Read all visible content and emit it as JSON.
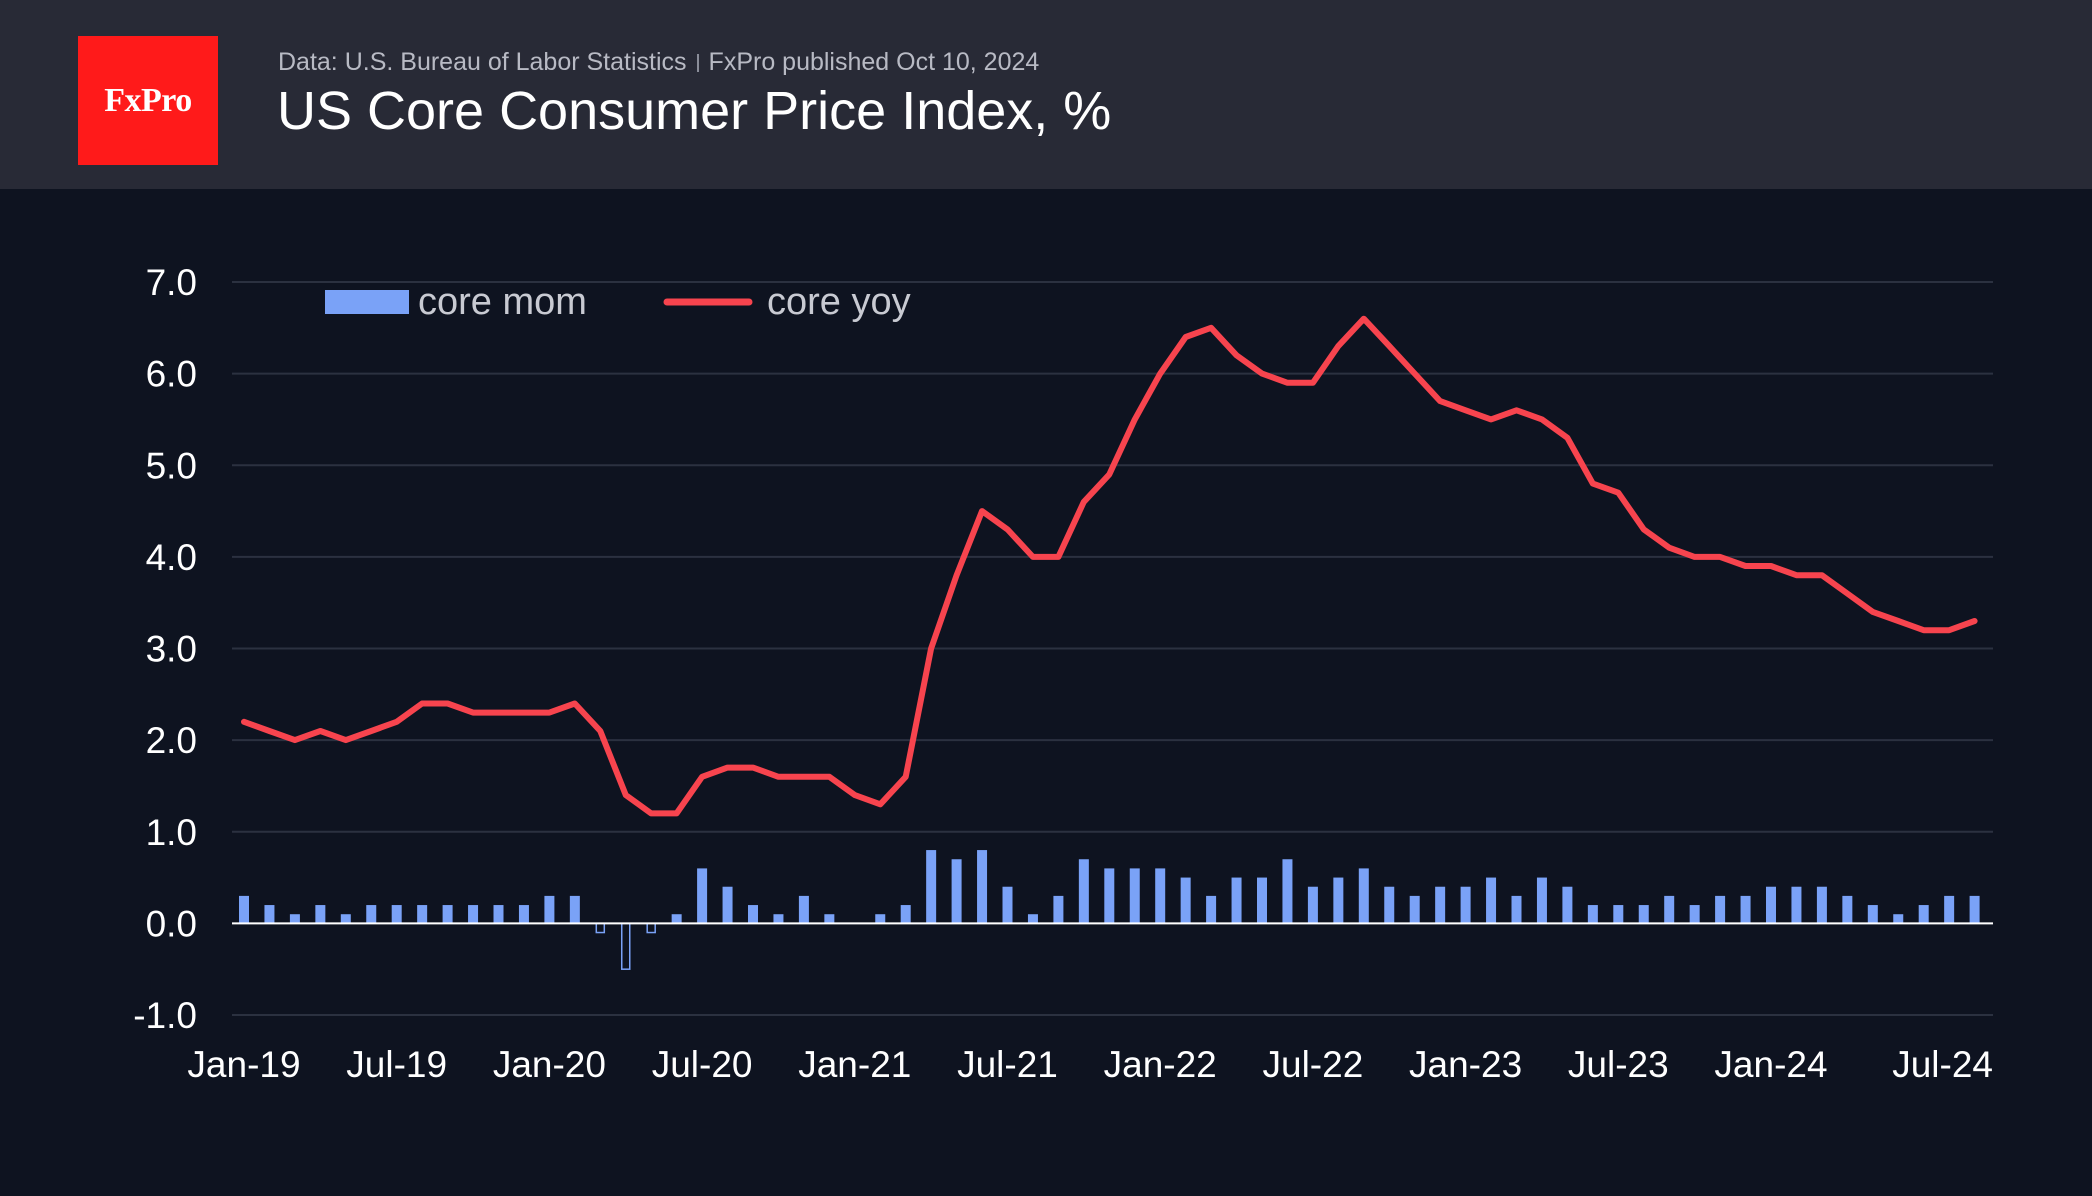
{
  "header": {
    "logo": "FxPro",
    "source": "Data: U.S. Bureau of Labor Statistics",
    "published": "FxPro published Oct 10, 2024",
    "title": "US Core Consumer Price Index, %"
  },
  "colors": {
    "mom": "#7aa2f7",
    "yoy": "#f7444e",
    "grid": "#2b3140",
    "text": "#ffffff",
    "legend_text": "#c8cad2",
    "zero_line": "#ffffff"
  },
  "chart_data": {
    "type": "bar+line",
    "title": "US Core Consumer Price Index, %",
    "ylim": [
      -1.0,
      7.0
    ],
    "yticks": [
      "7.0",
      "6.0",
      "5.0",
      "4.0",
      "3.0",
      "2.0",
      "1.0",
      "0.0",
      "-1.0"
    ],
    "ytick_values": [
      7,
      6,
      5,
      4,
      3,
      2,
      1,
      0,
      -1
    ],
    "xtick_labels": [
      "Jan-19",
      "Jul-19",
      "Jan-20",
      "Jul-20",
      "Jan-21",
      "Jul-21",
      "Jan-22",
      "Jul-22",
      "Jan-23",
      "Jul-23",
      "Jan-24",
      "Jul-24"
    ],
    "xtick_index": [
      0,
      6,
      12,
      18,
      24,
      30,
      36,
      42,
      48,
      54,
      60,
      66
    ],
    "legend": [
      "core mom",
      "core yoy"
    ],
    "series": [
      {
        "name": "core mom",
        "kind": "bar",
        "values": [
          0.3,
          0.2,
          0.1,
          0.2,
          0.1,
          0.2,
          0.2,
          0.2,
          0.2,
          0.2,
          0.2,
          0.2,
          0.3,
          0.3,
          -0.1,
          -0.5,
          -0.1,
          0.1,
          0.6,
          0.4,
          0.2,
          0.1,
          0.3,
          0.1,
          0.0,
          0.1,
          0.2,
          0.8,
          0.7,
          0.8,
          0.4,
          0.1,
          0.3,
          0.7,
          0.6,
          0.6,
          0.6,
          0.5,
          0.3,
          0.5,
          0.5,
          0.7,
          0.4,
          0.5,
          0.6,
          0.4,
          0.3,
          0.4,
          0.4,
          0.5,
          0.3,
          0.5,
          0.4,
          0.2,
          0.2,
          0.2,
          0.3,
          0.2,
          0.3,
          0.3,
          0.4,
          0.4,
          0.4,
          0.3,
          0.2,
          0.1,
          0.2,
          0.3,
          0.3
        ]
      },
      {
        "name": "core yoy",
        "kind": "line",
        "values": [
          2.2,
          2.1,
          2.0,
          2.1,
          2.0,
          2.1,
          2.2,
          2.4,
          2.4,
          2.3,
          2.3,
          2.3,
          2.3,
          2.4,
          2.1,
          1.4,
          1.2,
          1.2,
          1.6,
          1.7,
          1.7,
          1.6,
          1.6,
          1.6,
          1.4,
          1.3,
          1.6,
          3.0,
          3.8,
          4.5,
          4.3,
          4.0,
          4.0,
          4.6,
          4.9,
          5.5,
          6.0,
          6.4,
          6.5,
          6.2,
          6.0,
          5.9,
          5.9,
          6.3,
          6.6,
          6.3,
          6.0,
          5.7,
          5.6,
          5.5,
          5.6,
          5.5,
          5.3,
          4.8,
          4.7,
          4.3,
          4.1,
          4.0,
          4.0,
          3.9,
          3.9,
          3.8,
          3.8,
          3.6,
          3.4,
          3.3,
          3.2,
          3.2,
          3.3
        ]
      }
    ]
  }
}
